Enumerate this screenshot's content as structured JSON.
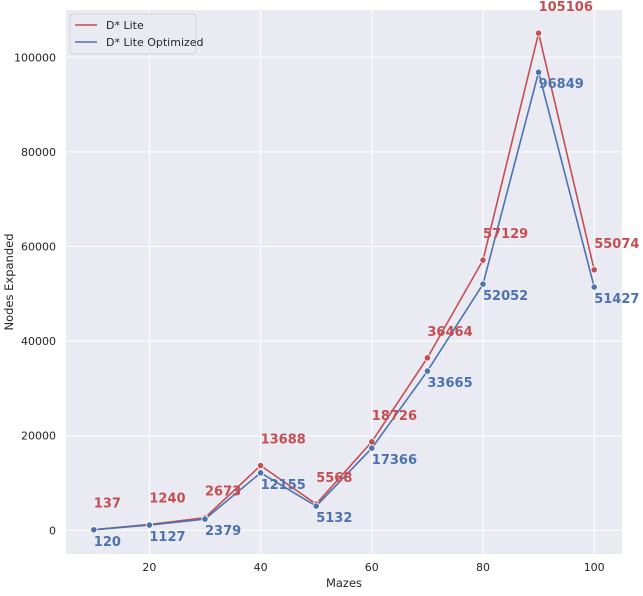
{
  "chart_data": {
    "type": "line",
    "title": "",
    "xlabel": "Mazes",
    "ylabel": "Nodes Expanded",
    "x": [
      10,
      20,
      30,
      40,
      50,
      60,
      70,
      80,
      90,
      100
    ],
    "xlim": [
      5,
      105
    ],
    "ylim": [
      -5000,
      110000
    ],
    "xticks": [
      20,
      40,
      60,
      80,
      100
    ],
    "yticks": [
      0,
      20000,
      40000,
      60000,
      80000,
      100000
    ],
    "grid": true,
    "legend_position": "top-left",
    "series": [
      {
        "name": "D* Lite",
        "color": "#c44e52",
        "values": [
          137,
          1240,
          2673,
          13688,
          5568,
          18726,
          36464,
          57129,
          105106,
          55074
        ],
        "labels": [
          "137",
          "1240",
          "2673",
          "13688",
          "5568",
          "18726",
          "36464",
          "57129",
          "105106",
          "55074"
        ]
      },
      {
        "name": "D* Lite Optimized",
        "color": "#4c72b0",
        "values": [
          120,
          1127,
          2379,
          12155,
          5132,
          17366,
          33665,
          52052,
          96849,
          51427
        ],
        "labels": [
          "120",
          "1127",
          "2379",
          "12155",
          "5132",
          "17366",
          "33665",
          "52052",
          "96849",
          "51427"
        ]
      }
    ]
  }
}
